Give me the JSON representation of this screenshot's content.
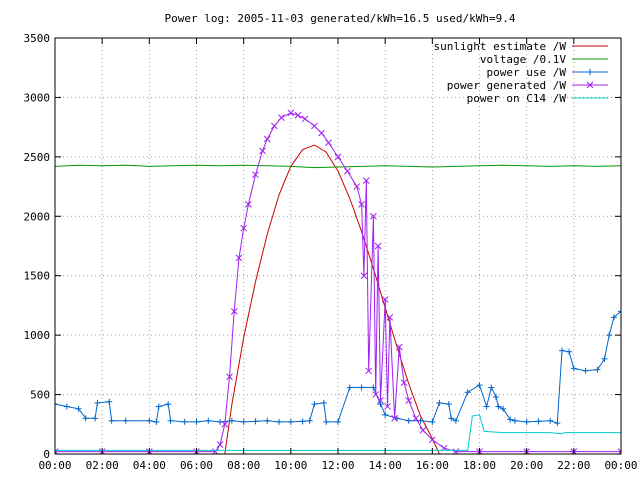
{
  "chart_data": {
    "type": "line",
    "title": "Power log: 2005-11-03 generated/kWh=16.5 used/kWh=9.4",
    "xlabel": "",
    "ylabel": "",
    "xlim": [
      0,
      24
    ],
    "ylim": [
      0,
      3500
    ],
    "grid": true,
    "legend_position": "top-right",
    "x_ticks": [
      0,
      2,
      4,
      6,
      8,
      10,
      12,
      14,
      16,
      18,
      20,
      22,
      24
    ],
    "x_tick_labels": [
      "00:00",
      "02:00",
      "04:00",
      "06:00",
      "08:00",
      "10:00",
      "12:00",
      "14:00",
      "16:00",
      "18:00",
      "20:00",
      "22:00",
      "00:00"
    ],
    "y_ticks": [
      0,
      500,
      1000,
      1500,
      2000,
      2500,
      3000,
      3500
    ],
    "y_tick_labels": [
      "0",
      "500",
      "1000",
      "1500",
      "2000",
      "2500",
      "3000",
      "3500"
    ],
    "series": [
      {
        "name": "sunlight estimate /W",
        "color": "#cc0000",
        "marker": "none",
        "points": [
          [
            7.2,
            0
          ],
          [
            7.5,
            420
          ],
          [
            8,
            980
          ],
          [
            8.5,
            1450
          ],
          [
            9,
            1850
          ],
          [
            9.5,
            2180
          ],
          [
            10,
            2420
          ],
          [
            10.5,
            2560
          ],
          [
            11,
            2600
          ],
          [
            11.5,
            2540
          ],
          [
            12,
            2380
          ],
          [
            12.5,
            2150
          ],
          [
            13,
            1870
          ],
          [
            13.5,
            1560
          ],
          [
            14,
            1230
          ],
          [
            14.5,
            900
          ],
          [
            15,
            590
          ],
          [
            15.5,
            320
          ],
          [
            16,
            130
          ],
          [
            16.3,
            0
          ]
        ]
      },
      {
        "name": "voltage /0.1V",
        "color": "#009900",
        "marker": "none",
        "points": [
          [
            0,
            2420
          ],
          [
            1,
            2430
          ],
          [
            2,
            2425
          ],
          [
            3,
            2430
          ],
          [
            4,
            2420
          ],
          [
            5,
            2425
          ],
          [
            6,
            2430
          ],
          [
            7,
            2425
          ],
          [
            8,
            2430
          ],
          [
            9,
            2425
          ],
          [
            10,
            2420
          ],
          [
            11,
            2410
          ],
          [
            12,
            2415
          ],
          [
            13,
            2420
          ],
          [
            14,
            2425
          ],
          [
            15,
            2420
          ],
          [
            16,
            2415
          ],
          [
            17,
            2420
          ],
          [
            18,
            2425
          ],
          [
            19,
            2430
          ],
          [
            20,
            2425
          ],
          [
            21,
            2420
          ],
          [
            22,
            2425
          ],
          [
            23,
            2420
          ],
          [
            24,
            2425
          ]
        ]
      },
      {
        "name": "power use /W",
        "color": "#0066cc",
        "marker": "plus",
        "points": [
          [
            0,
            420
          ],
          [
            0.5,
            400
          ],
          [
            1,
            380
          ],
          [
            1.3,
            300
          ],
          [
            1.7,
            300
          ],
          [
            1.8,
            430
          ],
          [
            2.3,
            440
          ],
          [
            2.4,
            280
          ],
          [
            3,
            280
          ],
          [
            4,
            280
          ],
          [
            4.3,
            270
          ],
          [
            4.4,
            400
          ],
          [
            4.8,
            420
          ],
          [
            4.9,
            280
          ],
          [
            5.5,
            270
          ],
          [
            6,
            270
          ],
          [
            6.5,
            280
          ],
          [
            7,
            270
          ],
          [
            7.5,
            280
          ],
          [
            8,
            270
          ],
          [
            8.5,
            275
          ],
          [
            9,
            280
          ],
          [
            9.5,
            270
          ],
          [
            10,
            270
          ],
          [
            10.5,
            275
          ],
          [
            10.8,
            280
          ],
          [
            11,
            420
          ],
          [
            11.4,
            430
          ],
          [
            11.5,
            270
          ],
          [
            12,
            270
          ],
          [
            12.5,
            560
          ],
          [
            13,
            560
          ],
          [
            13.5,
            560
          ],
          [
            13.8,
            420
          ],
          [
            14,
            330
          ],
          [
            14.5,
            300
          ],
          [
            15,
            280
          ],
          [
            15.5,
            280
          ],
          [
            16,
            270
          ],
          [
            16.3,
            430
          ],
          [
            16.7,
            420
          ],
          [
            16.8,
            300
          ],
          [
            17,
            280
          ],
          [
            17.5,
            520
          ],
          [
            18,
            580
          ],
          [
            18.3,
            400
          ],
          [
            18.5,
            560
          ],
          [
            18.7,
            480
          ],
          [
            18.8,
            400
          ],
          [
            19,
            380
          ],
          [
            19.3,
            290
          ],
          [
            19.5,
            280
          ],
          [
            20,
            270
          ],
          [
            20.5,
            275
          ],
          [
            21,
            280
          ],
          [
            21.3,
            260
          ],
          [
            21.5,
            870
          ],
          [
            21.8,
            860
          ],
          [
            22,
            720
          ],
          [
            22.5,
            700
          ],
          [
            23,
            710
          ],
          [
            23.3,
            800
          ],
          [
            23.5,
            1000
          ],
          [
            23.7,
            1150
          ],
          [
            24,
            1200
          ]
        ]
      },
      {
        "name": "power generated /W",
        "color": "#a020f0",
        "marker": "x",
        "points": [
          [
            0,
            20
          ],
          [
            2,
            20
          ],
          [
            4,
            20
          ],
          [
            6,
            20
          ],
          [
            6.8,
            20
          ],
          [
            7,
            80
          ],
          [
            7.2,
            250
          ],
          [
            7.4,
            650
          ],
          [
            7.6,
            1200
          ],
          [
            7.8,
            1650
          ],
          [
            8,
            1900
          ],
          [
            8.2,
            2100
          ],
          [
            8.5,
            2350
          ],
          [
            8.8,
            2550
          ],
          [
            9,
            2650
          ],
          [
            9.3,
            2760
          ],
          [
            9.6,
            2830
          ],
          [
            10,
            2870
          ],
          [
            10.3,
            2850
          ],
          [
            10.6,
            2820
          ],
          [
            11,
            2760
          ],
          [
            11.3,
            2700
          ],
          [
            11.6,
            2620
          ],
          [
            12,
            2500
          ],
          [
            12.4,
            2380
          ],
          [
            12.8,
            2250
          ],
          [
            13,
            2100
          ],
          [
            13.1,
            1500
          ],
          [
            13.2,
            2300
          ],
          [
            13.3,
            700
          ],
          [
            13.5,
            2000
          ],
          [
            13.6,
            500
          ],
          [
            13.7,
            1750
          ],
          [
            13.8,
            450
          ],
          [
            14,
            1300
          ],
          [
            14.1,
            400
          ],
          [
            14.2,
            1150
          ],
          [
            14.4,
            300
          ],
          [
            14.6,
            900
          ],
          [
            14.8,
            600
          ],
          [
            15,
            450
          ],
          [
            15.3,
            300
          ],
          [
            15.6,
            200
          ],
          [
            16,
            120
          ],
          [
            16.5,
            50
          ],
          [
            17,
            20
          ],
          [
            18,
            20
          ],
          [
            20,
            20
          ],
          [
            22,
            20
          ],
          [
            24,
            20
          ]
        ]
      },
      {
        "name": "power on C14 /W",
        "color": "#00cccc",
        "marker": "none",
        "points": [
          [
            0,
            30
          ],
          [
            6,
            30
          ],
          [
            7,
            30
          ],
          [
            7.3,
            30
          ],
          [
            10,
            30
          ],
          [
            12,
            30
          ],
          [
            14,
            30
          ],
          [
            16,
            30
          ],
          [
            17.5,
            30
          ],
          [
            17.7,
            320
          ],
          [
            18,
            330
          ],
          [
            18.2,
            190
          ],
          [
            19,
            180
          ],
          [
            19.5,
            180
          ],
          [
            20,
            180
          ],
          [
            21,
            180
          ],
          [
            21.5,
            170
          ],
          [
            21.6,
            180
          ],
          [
            22,
            180
          ],
          [
            23,
            180
          ],
          [
            24,
            180
          ]
        ]
      }
    ]
  }
}
